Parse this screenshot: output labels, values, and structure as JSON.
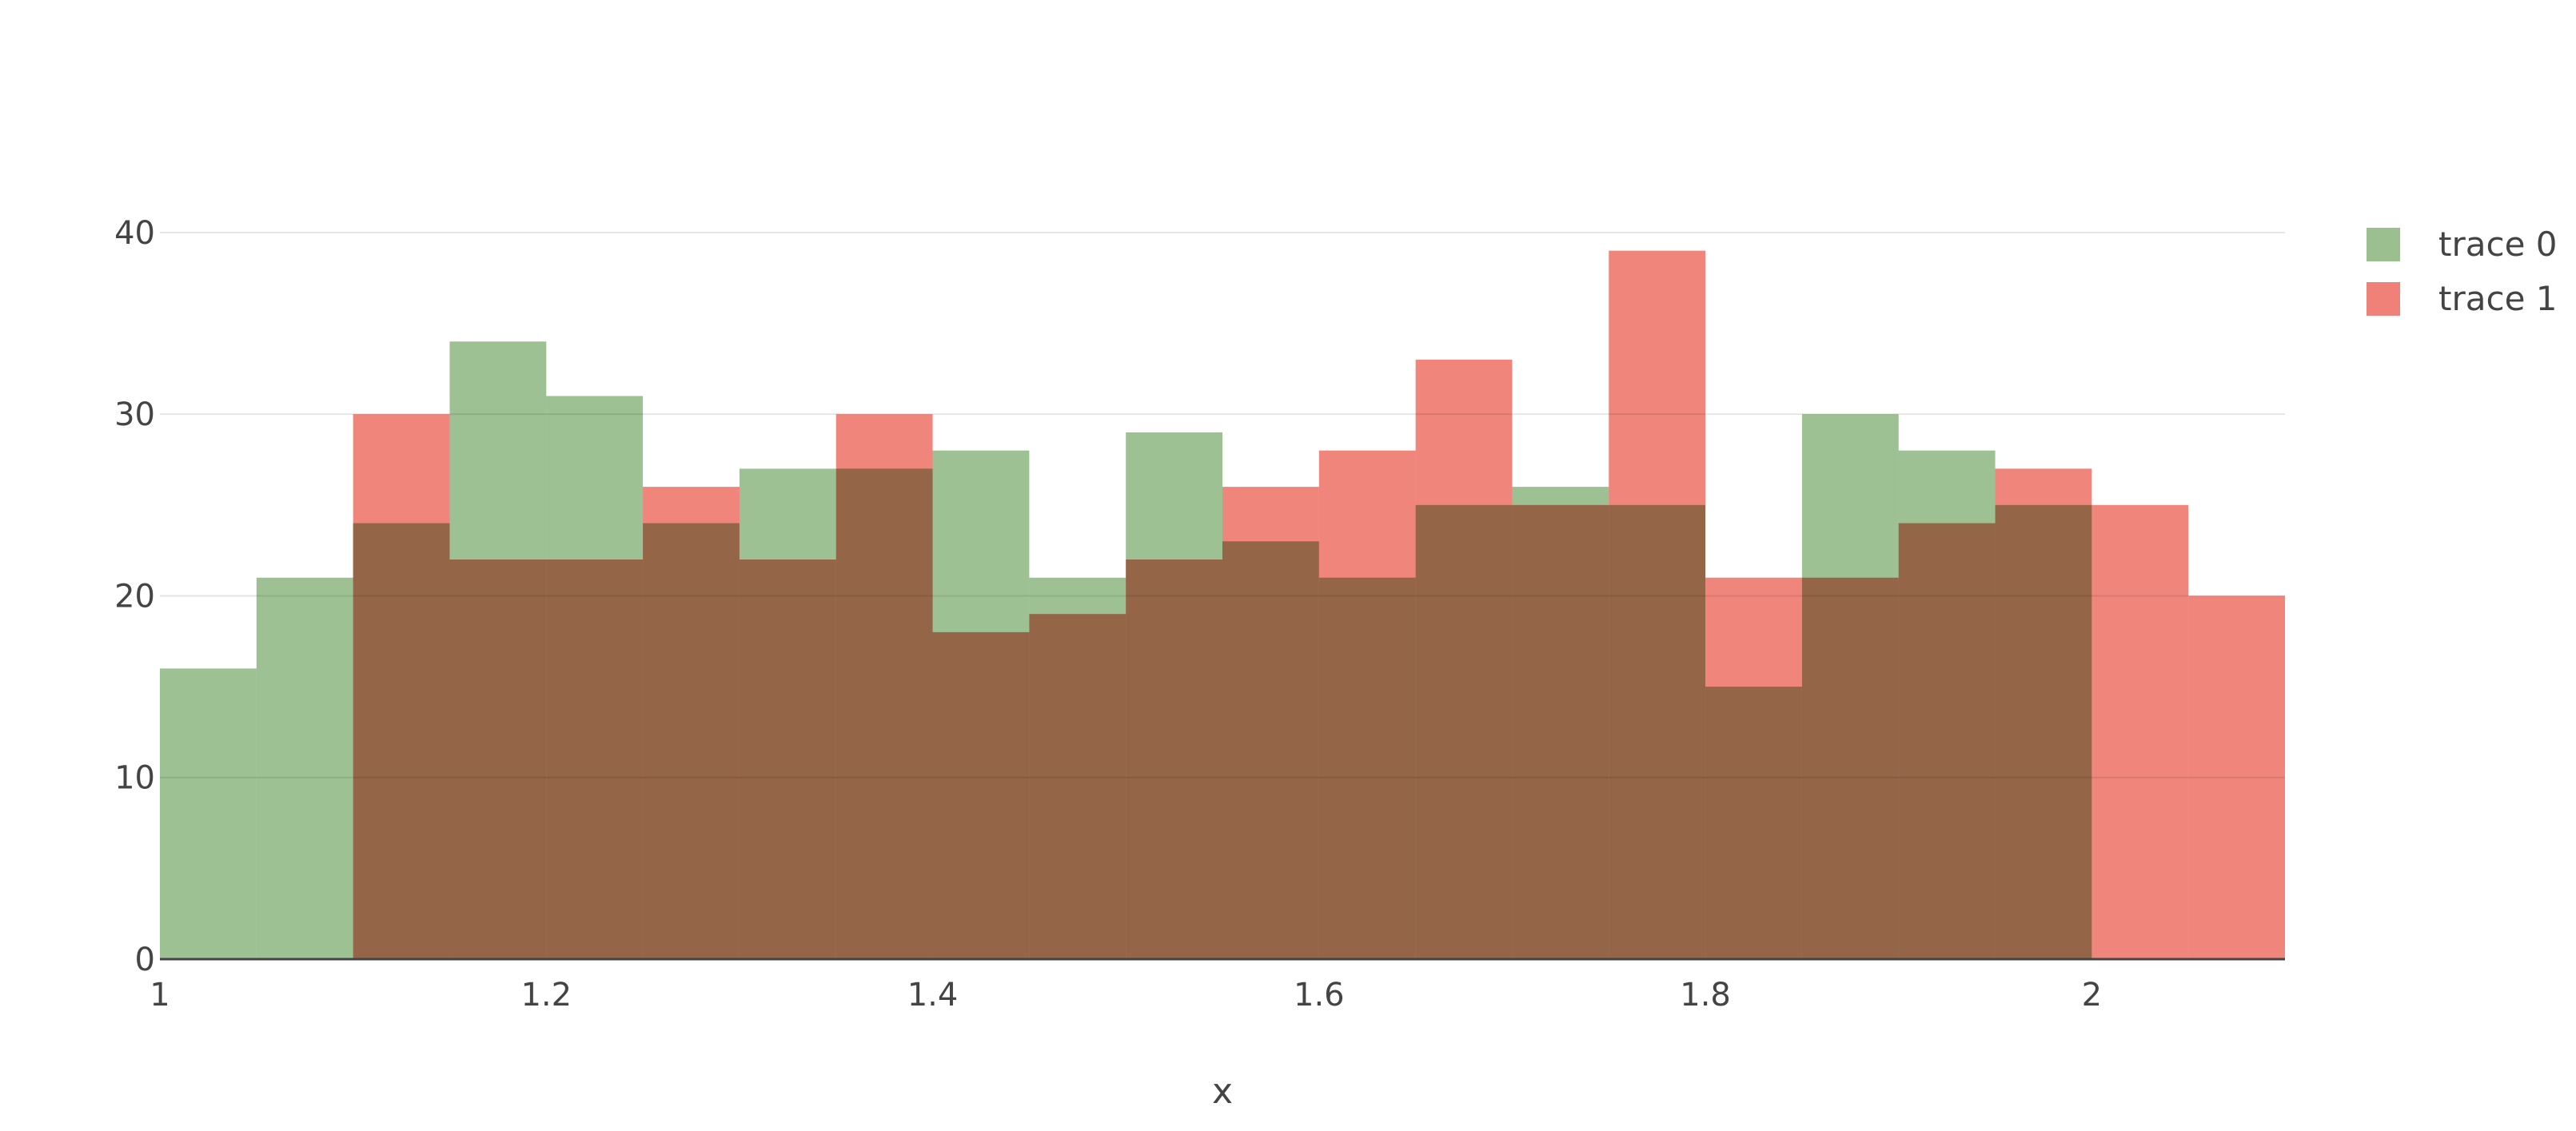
{
  "chart_data": {
    "type": "histogram",
    "barmode": "overlay",
    "bin_width": 0.05,
    "x_start": 1.0,
    "xlabel": "x",
    "ylabel": "",
    "xlim": [
      1.0,
      2.1
    ],
    "ylim": [
      0,
      44
    ],
    "x_ticks": [
      1,
      1.2,
      1.4,
      1.6,
      1.8,
      2
    ],
    "x_tick_labels": [
      "1",
      "1.2",
      "1.4",
      "1.6",
      "1.8",
      "2"
    ],
    "y_ticks": [
      0,
      10,
      20,
      30,
      40
    ],
    "y_tick_labels": [
      "0",
      "10",
      "20",
      "30",
      "40"
    ],
    "grid": true,
    "legend_position": "top-right",
    "series": [
      {
        "name": "trace 0",
        "color": "#9bbf8f",
        "bin_starts": [
          1.0,
          1.05,
          1.1,
          1.15,
          1.2,
          1.25,
          1.3,
          1.35,
          1.4,
          1.45,
          1.5,
          1.55,
          1.6,
          1.65,
          1.7,
          1.75,
          1.8,
          1.85,
          1.9,
          1.95
        ],
        "values": [
          16,
          21,
          24,
          34,
          31,
          24,
          27,
          27,
          28,
          21,
          29,
          23,
          21,
          25,
          26,
          25,
          15,
          30,
          28,
          25
        ]
      },
      {
        "name": "trace 1",
        "color": "#f08178",
        "bin_starts": [
          1.1,
          1.15,
          1.2,
          1.25,
          1.3,
          1.35,
          1.4,
          1.45,
          1.5,
          1.55,
          1.6,
          1.65,
          1.7,
          1.75,
          1.8,
          1.85,
          1.9,
          1.95,
          2.0,
          2.05
        ],
        "values": [
          30,
          22,
          22,
          26,
          22,
          30,
          18,
          19,
          22,
          26,
          28,
          33,
          25,
          39,
          21,
          21,
          24,
          27,
          25,
          20
        ]
      }
    ]
  }
}
